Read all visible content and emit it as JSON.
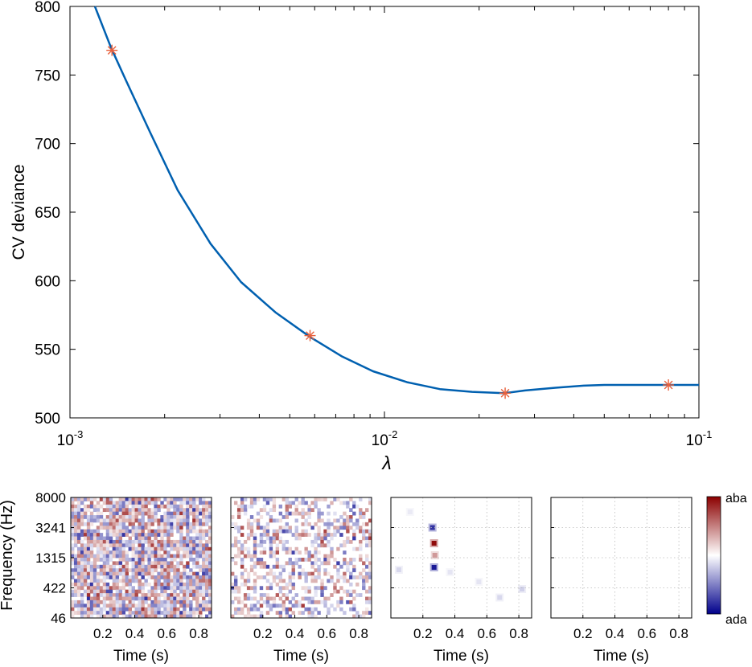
{
  "chart_data": [
    {
      "type": "line",
      "xscale": "log",
      "xlim": [
        0.001,
        0.1
      ],
      "ylim": [
        500,
        800
      ],
      "xlabel": "λ",
      "ylabel": "CV deviance",
      "x_ticks": [
        {
          "value": 0.001,
          "base": "10",
          "exp": "-3"
        },
        {
          "value": 0.01,
          "base": "10",
          "exp": "-2"
        },
        {
          "value": 0.1,
          "base": "10",
          "exp": "-1"
        }
      ],
      "y_ticks": [
        "500",
        "550",
        "600",
        "650",
        "700",
        "750",
        "800"
      ],
      "grid": false,
      "line_color": "#0060b0",
      "marker_color": "#e8603c",
      "series": [
        {
          "x": [
            0.0012,
            0.00135,
            0.0015,
            0.0018,
            0.0022,
            0.0028,
            0.0035,
            0.0045,
            0.0058,
            0.0073,
            0.0092,
            0.0118,
            0.015,
            0.019,
            0.024,
            0.028,
            0.035,
            0.043,
            0.05,
            0.06,
            0.08,
            0.1
          ],
          "y": [
            800,
            770,
            747,
            708,
            666,
            627,
            599,
            577,
            559,
            545,
            534,
            526,
            521,
            519,
            518,
            520,
            522,
            523.5,
            524,
            524,
            524,
            524
          ]
        }
      ],
      "markers": [
        {
          "x": 0.00136,
          "y": 768
        },
        {
          "x": 0.0058,
          "y": 560
        },
        {
          "x": 0.0242,
          "y": 518
        },
        {
          "x": 0.08,
          "y": 524
        }
      ]
    },
    {
      "type": "heatmap",
      "panels": 4,
      "xlim": [
        0,
        0.88
      ],
      "x_ticks": [
        "0.2",
        "0.4",
        "0.6",
        "0.8"
      ],
      "x_tick_values": [
        0.2,
        0.4,
        0.6,
        0.8
      ],
      "xlabel": "Time (s)",
      "ylabel": "Frequency (Hz)",
      "y_ticks": [
        "8000",
        "3241",
        "1315",
        "422",
        "46"
      ],
      "colorbar": {
        "top_label": "aba",
        "bottom_label": "ada",
        "colors": [
          "#8b0000",
          "#ffffff",
          "#00008b"
        ]
      },
      "panel_sparsity": [
        1.0,
        0.55,
        0.06,
        0.0
      ]
    }
  ]
}
